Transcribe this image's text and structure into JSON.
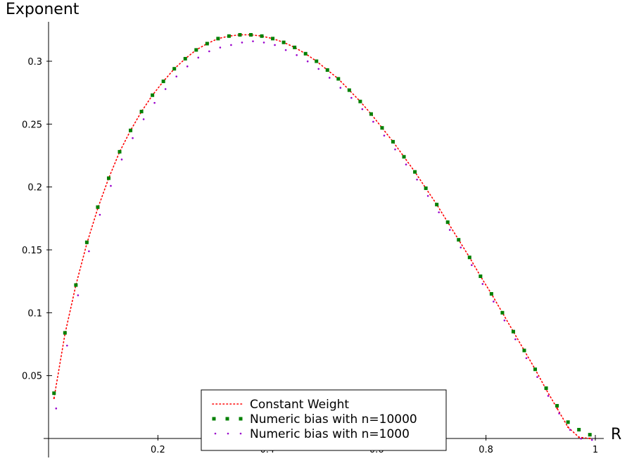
{
  "chart_data": {
    "type": "scatter",
    "title": "",
    "xlabel": "R",
    "ylabel": "Exponent",
    "xlim": [
      0,
      1
    ],
    "ylim": [
      0,
      0.33
    ],
    "grid": false,
    "legend_position": "bottom-center",
    "x_ticks": [
      {
        "value": 0.2,
        "label": "0.2"
      },
      {
        "value": 0.4,
        "label": "0.4"
      },
      {
        "value": 0.6,
        "label": "0.6"
      },
      {
        "value": 0.8,
        "label": "0.8"
      },
      {
        "value": 1.0,
        "label": "1"
      }
    ],
    "y_ticks": [
      {
        "value": 0.05,
        "label": "0.05"
      },
      {
        "value": 0.1,
        "label": "0.1"
      },
      {
        "value": 0.15,
        "label": "0.15"
      },
      {
        "value": 0.2,
        "label": "0.2"
      },
      {
        "value": 0.25,
        "label": "0.25"
      },
      {
        "value": 0.3,
        "label": "0.3"
      }
    ],
    "series": [
      {
        "name": "Constant Weight",
        "color": "#ff0000",
        "style": "dotted-line",
        "x": [
          0.01,
          0.03,
          0.05,
          0.07,
          0.09,
          0.11,
          0.13,
          0.15,
          0.17,
          0.19,
          0.21,
          0.23,
          0.25,
          0.27,
          0.29,
          0.31,
          0.33,
          0.35,
          0.37,
          0.39,
          0.41,
          0.43,
          0.45,
          0.47,
          0.49,
          0.51,
          0.53,
          0.55,
          0.57,
          0.59,
          0.61,
          0.63,
          0.65,
          0.67,
          0.69,
          0.71,
          0.73,
          0.75,
          0.77,
          0.79,
          0.81,
          0.83,
          0.85,
          0.87,
          0.89,
          0.91,
          0.93,
          0.95,
          0.97,
          0.99
        ],
        "y": [
          0.032,
          0.083,
          0.122,
          0.155,
          0.183,
          0.207,
          0.228,
          0.245,
          0.26,
          0.273,
          0.284,
          0.294,
          0.302,
          0.309,
          0.314,
          0.318,
          0.32,
          0.321,
          0.321,
          0.32,
          0.318,
          0.315,
          0.311,
          0.306,
          0.3,
          0.293,
          0.286,
          0.277,
          0.268,
          0.258,
          0.247,
          0.236,
          0.224,
          0.212,
          0.199,
          0.186,
          0.172,
          0.158,
          0.144,
          0.129,
          0.115,
          0.1,
          0.085,
          0.07,
          0.055,
          0.039,
          0.024,
          0.009,
          0.001,
          0.0
        ]
      },
      {
        "name": "Numeric bias with n=10000",
        "color": "#008000",
        "style": "square-markers",
        "x": [
          0.01,
          0.03,
          0.05,
          0.07,
          0.09,
          0.11,
          0.13,
          0.15,
          0.17,
          0.19,
          0.21,
          0.23,
          0.25,
          0.27,
          0.29,
          0.31,
          0.33,
          0.35,
          0.37,
          0.39,
          0.41,
          0.43,
          0.45,
          0.47,
          0.49,
          0.51,
          0.53,
          0.55,
          0.57,
          0.59,
          0.61,
          0.63,
          0.65,
          0.67,
          0.69,
          0.71,
          0.73,
          0.75,
          0.77,
          0.79,
          0.81,
          0.83,
          0.85,
          0.87,
          0.89,
          0.91,
          0.93,
          0.95,
          0.97,
          0.99
        ],
        "y": [
          0.036,
          0.084,
          0.122,
          0.156,
          0.184,
          0.207,
          0.228,
          0.245,
          0.26,
          0.273,
          0.284,
          0.294,
          0.302,
          0.309,
          0.314,
          0.318,
          0.32,
          0.321,
          0.321,
          0.32,
          0.318,
          0.315,
          0.311,
          0.306,
          0.3,
          0.293,
          0.286,
          0.277,
          0.268,
          0.258,
          0.247,
          0.236,
          0.224,
          0.212,
          0.199,
          0.186,
          0.172,
          0.158,
          0.144,
          0.129,
          0.115,
          0.1,
          0.085,
          0.07,
          0.055,
          0.04,
          0.026,
          0.013,
          0.007,
          0.003
        ]
      },
      {
        "name": "Numeric bias with n=1000",
        "color": "#9900cc",
        "style": "dots",
        "x": [
          0.01,
          0.03,
          0.05,
          0.07,
          0.09,
          0.11,
          0.13,
          0.15,
          0.17,
          0.19,
          0.21,
          0.23,
          0.25,
          0.27,
          0.29,
          0.31,
          0.33,
          0.35,
          0.37,
          0.39,
          0.41,
          0.43,
          0.45,
          0.47,
          0.49,
          0.51,
          0.53,
          0.55,
          0.57,
          0.59,
          0.61,
          0.63,
          0.65,
          0.67,
          0.69,
          0.71,
          0.73,
          0.75,
          0.77,
          0.79,
          0.81,
          0.83,
          0.85,
          0.87,
          0.89,
          0.91,
          0.93,
          0.95,
          0.97,
          0.99
        ],
        "y": [
          0.025,
          0.075,
          0.115,
          0.15,
          0.179,
          0.202,
          0.223,
          0.24,
          0.255,
          0.268,
          0.279,
          0.289,
          0.297,
          0.304,
          0.309,
          0.312,
          0.314,
          0.316,
          0.317,
          0.316,
          0.314,
          0.31,
          0.306,
          0.301,
          0.295,
          0.288,
          0.28,
          0.272,
          0.263,
          0.253,
          0.242,
          0.231,
          0.219,
          0.207,
          0.194,
          0.181,
          0.167,
          0.153,
          0.139,
          0.124,
          0.11,
          0.095,
          0.08,
          0.065,
          0.05,
          0.035,
          0.021,
          0.008,
          0.001,
          0.0
        ]
      }
    ]
  }
}
